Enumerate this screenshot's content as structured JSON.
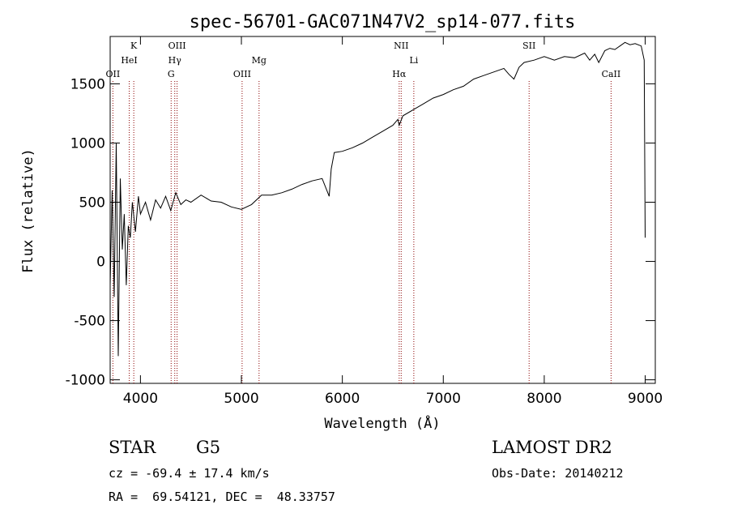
{
  "chart_data": {
    "type": "line",
    "title": "spec-56701-GAC071N47V2_sp14-077.fits",
    "xlabel": "Wavelength (Å)",
    "ylabel": "Flux (relative)",
    "xlim": [
      3700,
      9100
    ],
    "ylim": [
      -1030,
      1900
    ],
    "xticks": [
      4000,
      5000,
      6000,
      7000,
      8000,
      9000
    ],
    "yticks": [
      -1000,
      -500,
      0,
      500,
      1000,
      1500
    ],
    "series": [
      {
        "x": [
          3700,
          3720,
          3740,
          3760,
          3780,
          3800,
          3820,
          3840,
          3860,
          3880,
          3900,
          3920,
          3950,
          3980,
          4000,
          4050,
          4100,
          4150,
          4200,
          4250,
          4300,
          4350,
          4400,
          4450,
          4500,
          4600,
          4700,
          4800,
          4900,
          5000,
          5100,
          5200,
          5300,
          5400,
          5500,
          5600,
          5700,
          5800,
          5870,
          5890,
          5920,
          6000,
          6100,
          6200,
          6300,
          6400,
          6500,
          6550,
          6563,
          6600,
          6700,
          6800,
          6900,
          7000,
          7100,
          7200,
          7300,
          7400,
          7500,
          7600,
          7650,
          7700,
          7750,
          7800,
          7900,
          8000,
          8100,
          8200,
          8300,
          8400,
          8450,
          8500,
          8540,
          8600,
          8650,
          8700,
          8750,
          8800,
          8850,
          8900,
          8960,
          8990,
          9000
        ],
        "y": [
          -200,
          600,
          -300,
          1000,
          -800,
          700,
          100,
          400,
          -200,
          300,
          200,
          500,
          250,
          550,
          400,
          500,
          350,
          520,
          450,
          550,
          430,
          580,
          480,
          520,
          500,
          560,
          510,
          500,
          460,
          440,
          480,
          560,
          560,
          580,
          610,
          650,
          680,
          700,
          550,
          780,
          920,
          930,
          960,
          1000,
          1050,
          1100,
          1150,
          1200,
          1150,
          1230,
          1280,
          1330,
          1380,
          1410,
          1450,
          1480,
          1540,
          1570,
          1600,
          1630,
          1580,
          1540,
          1640,
          1680,
          1700,
          1730,
          1700,
          1730,
          1720,
          1760,
          1700,
          1750,
          1680,
          1780,
          1800,
          1790,
          1820,
          1850,
          1830,
          1840,
          1820,
          1700,
          200
        ]
      }
    ],
    "annotations": [
      {
        "label": "OII",
        "x": 3727
      },
      {
        "label": "K",
        "x": 3934
      },
      {
        "label": "HeI",
        "x": 3889
      },
      {
        "label": "OIII",
        "x": 4363
      },
      {
        "label": "Hγ",
        "x": 4340
      },
      {
        "label": "G",
        "x": 4304
      },
      {
        "label": "OIII",
        "x": 5007
      },
      {
        "label": "Mg",
        "x": 5175
      },
      {
        "label": "NII",
        "x": 6583
      },
      {
        "label": "Hα",
        "x": 6563
      },
      {
        "label": "Li",
        "x": 6708
      },
      {
        "label": "SII",
        "x": 7850
      },
      {
        "label": "CaII",
        "x": 8662
      }
    ],
    "line_color": "#000000",
    "marker_color": "#8b0000",
    "grid": false
  },
  "info": {
    "object_class": "STAR",
    "subclass": "G5",
    "survey": "LAMOST DR2",
    "cz": "cz = -69.4 ± 17.4 km/s",
    "obs_date": "Obs-Date: 20140212",
    "coords": "RA =  69.54121, DEC =  48.33757"
  }
}
